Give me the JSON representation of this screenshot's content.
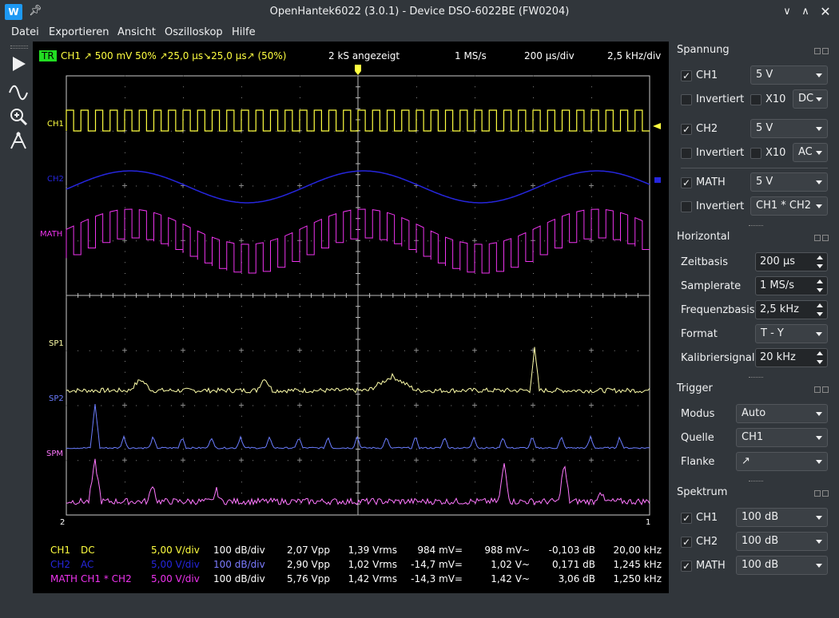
{
  "window": {
    "title": "OpenHantek6022 (3.0.1) - Device DSO-6022BE (FW0204)",
    "logo_text": "W"
  },
  "menu": [
    "Datei",
    "Exportieren",
    "Ansicht",
    "Oszilloskop",
    "Hilfe"
  ],
  "toolbar": [
    {
      "name": "run-icon"
    },
    {
      "name": "waveform-icon"
    },
    {
      "name": "zoom-icon"
    },
    {
      "name": "measure-icon"
    }
  ],
  "scope": {
    "header": {
      "trigger_badge": "TR",
      "trigger_info": "CH1  ↗  500 mV  50%  ↗25,0 µs↘25,0 µs↗ (50%)",
      "samples": "2 kS angezeigt",
      "samplerate": "1 MS/s",
      "timebase": "200 µs/div",
      "freqbase": "2,5 kHz/div"
    },
    "labels": {
      "ch1": "CH1",
      "ch2": "CH2",
      "math": "MATH",
      "sp1": "SP1",
      "sp2": "SP2",
      "spm": "SPM",
      "left_marker": "2",
      "right_marker": "1"
    },
    "measurements": [
      [
        "CH1",
        "DC",
        "5,00 V/div",
        "100 dB/div",
        "2,07 Vpp",
        "1,39 Vrms",
        "984 mV=",
        "988 mV~",
        "-0,103 dB",
        "20,00 kHz"
      ],
      [
        "CH2",
        "AC",
        "5,00 V/div",
        "100 dB/div",
        "2,90 Vpp",
        "1,02 Vrms",
        "-14,7 mV=",
        "1,02 V~",
        "0,171 dB",
        "1,245 kHz"
      ],
      [
        "MATH",
        "CH1 * CH2",
        "5,00 V/div",
        "100 dB/div",
        "5,76 Vpp",
        "1,42 Vrms",
        "-14,3 mV=",
        "1,42 V~",
        "3,06 dB",
        "1,250 kHz"
      ]
    ],
    "colors": {
      "ch1": "#ffff40",
      "ch2": "#2626dd",
      "math": "#ee33ee",
      "sp1": "#ffffaa",
      "sp2": "#6b7dff",
      "spm": "#ff77ff",
      "grid": "#aaaaaa",
      "trigger_badge_bg": "#22dd22"
    }
  },
  "panel": {
    "spannung": {
      "title": "Spannung",
      "ch1": {
        "label": "CH1",
        "checked": true,
        "value": "5 V",
        "invert_label": "Invertiert",
        "x10_label": "X10",
        "coupling": "DC"
      },
      "ch2": {
        "label": "CH2",
        "checked": true,
        "value": "5 V",
        "invert_label": "Invertiert",
        "x10_label": "X10",
        "coupling": "AC"
      },
      "math": {
        "label": "MATH",
        "checked": true,
        "value": "5 V",
        "invert_label": "Invertiert",
        "mode": "CH1 * CH2"
      }
    },
    "horizontal": {
      "title": "Horizontal",
      "zeitbasis_label": "Zeitbasis",
      "zeitbasis": "200 µs",
      "samplerate_label": "Samplerate",
      "samplerate": "1 MS/s",
      "freqbase_label": "Frequenzbasis",
      "freqbase": "2,5 kHz",
      "format_label": "Format",
      "format": "T - Y",
      "calib_label": "Kalibriersignal",
      "calib": "20 kHz"
    },
    "trigger": {
      "title": "Trigger",
      "modus_label": "Modus",
      "modus": "Auto",
      "quelle_label": "Quelle",
      "quelle": "CH1",
      "flanke_label": "Flanke",
      "flanke": "↗"
    },
    "spektrum": {
      "title": "Spektrum",
      "ch1_label": "CH1",
      "ch1": "100 dB",
      "ch2_label": "CH2",
      "ch2": "100 dB",
      "math_label": "MATH",
      "math": "100 dB"
    }
  }
}
